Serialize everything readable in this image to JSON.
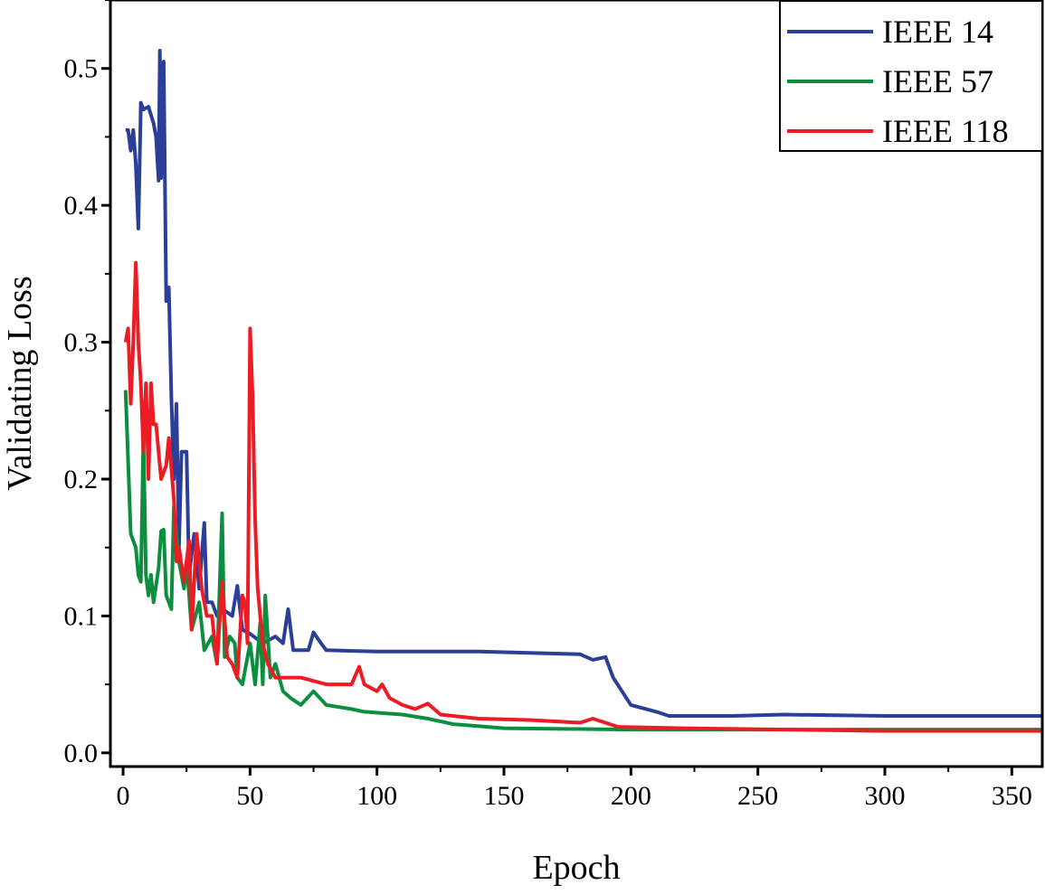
{
  "chart_data": {
    "type": "line",
    "title": "",
    "xlabel": "Epoch",
    "ylabel": "Validating Loss",
    "xlim": [
      -5,
      362
    ],
    "ylim": [
      -0.01,
      0.55
    ],
    "xticks": [
      0,
      50,
      100,
      150,
      200,
      250,
      300,
      350
    ],
    "yticks": [
      0.0,
      0.1,
      0.2,
      0.3,
      0.4,
      0.5
    ],
    "ytick_labels": [
      "0.0",
      "0.1",
      "0.2",
      "0.3",
      "0.4",
      "0.5"
    ],
    "grid": false,
    "legend_position": "top-right",
    "series": [
      {
        "name": "IEEE 14",
        "color": "#2b3f98",
        "points": [
          [
            1,
            0.455
          ],
          [
            2,
            0.455
          ],
          [
            3,
            0.44
          ],
          [
            4,
            0.455
          ],
          [
            5,
            0.43
          ],
          [
            6,
            0.383
          ],
          [
            7,
            0.475
          ],
          [
            8,
            0.47
          ],
          [
            10,
            0.472
          ],
          [
            12,
            0.46
          ],
          [
            13,
            0.45
          ],
          [
            14,
            0.418
          ],
          [
            14.5,
            0.513
          ],
          [
            15,
            0.42
          ],
          [
            16,
            0.505
          ],
          [
            17,
            0.33
          ],
          [
            18,
            0.34
          ],
          [
            19,
            0.26
          ],
          [
            20,
            0.2
          ],
          [
            21,
            0.255
          ],
          [
            22,
            0.15
          ],
          [
            23,
            0.22
          ],
          [
            25,
            0.22
          ],
          [
            26,
            0.13
          ],
          [
            28,
            0.16
          ],
          [
            30,
            0.12
          ],
          [
            32,
            0.168
          ],
          [
            33,
            0.11
          ],
          [
            35,
            0.11
          ],
          [
            37,
            0.1
          ],
          [
            40,
            0.104
          ],
          [
            43,
            0.1
          ],
          [
            45,
            0.122
          ],
          [
            47,
            0.09
          ],
          [
            50,
            0.087
          ],
          [
            55,
            0.08
          ],
          [
            60,
            0.085
          ],
          [
            63,
            0.08
          ],
          [
            65,
            0.105
          ],
          [
            67,
            0.075
          ],
          [
            70,
            0.075
          ],
          [
            73,
            0.075
          ],
          [
            75,
            0.088
          ],
          [
            78,
            0.08
          ],
          [
            80,
            0.075
          ],
          [
            100,
            0.074
          ],
          [
            140,
            0.074
          ],
          [
            180,
            0.072
          ],
          [
            185,
            0.068
          ],
          [
            190,
            0.07
          ],
          [
            193,
            0.055
          ],
          [
            200,
            0.035
          ],
          [
            210,
            0.03
          ],
          [
            215,
            0.027
          ],
          [
            225,
            0.027
          ],
          [
            240,
            0.027
          ],
          [
            260,
            0.028
          ],
          [
            300,
            0.027
          ],
          [
            362,
            0.027
          ]
        ]
      },
      {
        "name": "IEEE 57",
        "color": "#0b8f3e",
        "points": [
          [
            1,
            0.265
          ],
          [
            3,
            0.16
          ],
          [
            5,
            0.15
          ],
          [
            6,
            0.13
          ],
          [
            7,
            0.125
          ],
          [
            8,
            0.232
          ],
          [
            9,
            0.13
          ],
          [
            10,
            0.115
          ],
          [
            11,
            0.13
          ],
          [
            12,
            0.11
          ],
          [
            14,
            0.135
          ],
          [
            15,
            0.162
          ],
          [
            16,
            0.163
          ],
          [
            17,
            0.115
          ],
          [
            19,
            0.105
          ],
          [
            20,
            0.18
          ],
          [
            22,
            0.14
          ],
          [
            24,
            0.12
          ],
          [
            25,
            0.14
          ],
          [
            27,
            0.09
          ],
          [
            30,
            0.11
          ],
          [
            32,
            0.075
          ],
          [
            35,
            0.085
          ],
          [
            37,
            0.065
          ],
          [
            39,
            0.175
          ],
          [
            40,
            0.07
          ],
          [
            42,
            0.085
          ],
          [
            44,
            0.08
          ],
          [
            45,
            0.055
          ],
          [
            47,
            0.05
          ],
          [
            50,
            0.08
          ],
          [
            52,
            0.05
          ],
          [
            54,
            0.095
          ],
          [
            55,
            0.05
          ],
          [
            56,
            0.115
          ],
          [
            58,
            0.055
          ],
          [
            60,
            0.065
          ],
          [
            63,
            0.045
          ],
          [
            66,
            0.04
          ],
          [
            70,
            0.035
          ],
          [
            75,
            0.045
          ],
          [
            80,
            0.035
          ],
          [
            90,
            0.032
          ],
          [
            95,
            0.03
          ],
          [
            110,
            0.028
          ],
          [
            120,
            0.025
          ],
          [
            130,
            0.021
          ],
          [
            150,
            0.018
          ],
          [
            200,
            0.017
          ],
          [
            250,
            0.017
          ],
          [
            362,
            0.017
          ]
        ]
      },
      {
        "name": "IEEE 118",
        "color": "#ec1c24",
        "points": [
          [
            1,
            0.3
          ],
          [
            2,
            0.31
          ],
          [
            3,
            0.255
          ],
          [
            4,
            0.3
          ],
          [
            5,
            0.358
          ],
          [
            6,
            0.3
          ],
          [
            7,
            0.27
          ],
          [
            8,
            0.22
          ],
          [
            9,
            0.27
          ],
          [
            10,
            0.2
          ],
          [
            11,
            0.27
          ],
          [
            12,
            0.24
          ],
          [
            13,
            0.24
          ],
          [
            15,
            0.2
          ],
          [
            17,
            0.21
          ],
          [
            18,
            0.23
          ],
          [
            20,
            0.185
          ],
          [
            21,
            0.14
          ],
          [
            22,
            0.15
          ],
          [
            24,
            0.125
          ],
          [
            26,
            0.155
          ],
          [
            27,
            0.09
          ],
          [
            29,
            0.16
          ],
          [
            31,
            0.12
          ],
          [
            33,
            0.1
          ],
          [
            35,
            0.1
          ],
          [
            37,
            0.065
          ],
          [
            39,
            0.125
          ],
          [
            41,
            0.07
          ],
          [
            43,
            0.065
          ],
          [
            45,
            0.055
          ],
          [
            47,
            0.115
          ],
          [
            48,
            0.11
          ],
          [
            49,
            0.08
          ],
          [
            50,
            0.31
          ],
          [
            51,
            0.26
          ],
          [
            52,
            0.17
          ],
          [
            53,
            0.12
          ],
          [
            55,
            0.08
          ],
          [
            57,
            0.065
          ],
          [
            60,
            0.055
          ],
          [
            70,
            0.055
          ],
          [
            80,
            0.05
          ],
          [
            90,
            0.05
          ],
          [
            93,
            0.063
          ],
          [
            95,
            0.05
          ],
          [
            100,
            0.045
          ],
          [
            102,
            0.05
          ],
          [
            105,
            0.04
          ],
          [
            110,
            0.035
          ],
          [
            115,
            0.032
          ],
          [
            120,
            0.036
          ],
          [
            125,
            0.028
          ],
          [
            140,
            0.025
          ],
          [
            160,
            0.024
          ],
          [
            180,
            0.022
          ],
          [
            185,
            0.025
          ],
          [
            195,
            0.019
          ],
          [
            220,
            0.018
          ],
          [
            300,
            0.016
          ],
          [
            362,
            0.016
          ]
        ]
      }
    ]
  }
}
